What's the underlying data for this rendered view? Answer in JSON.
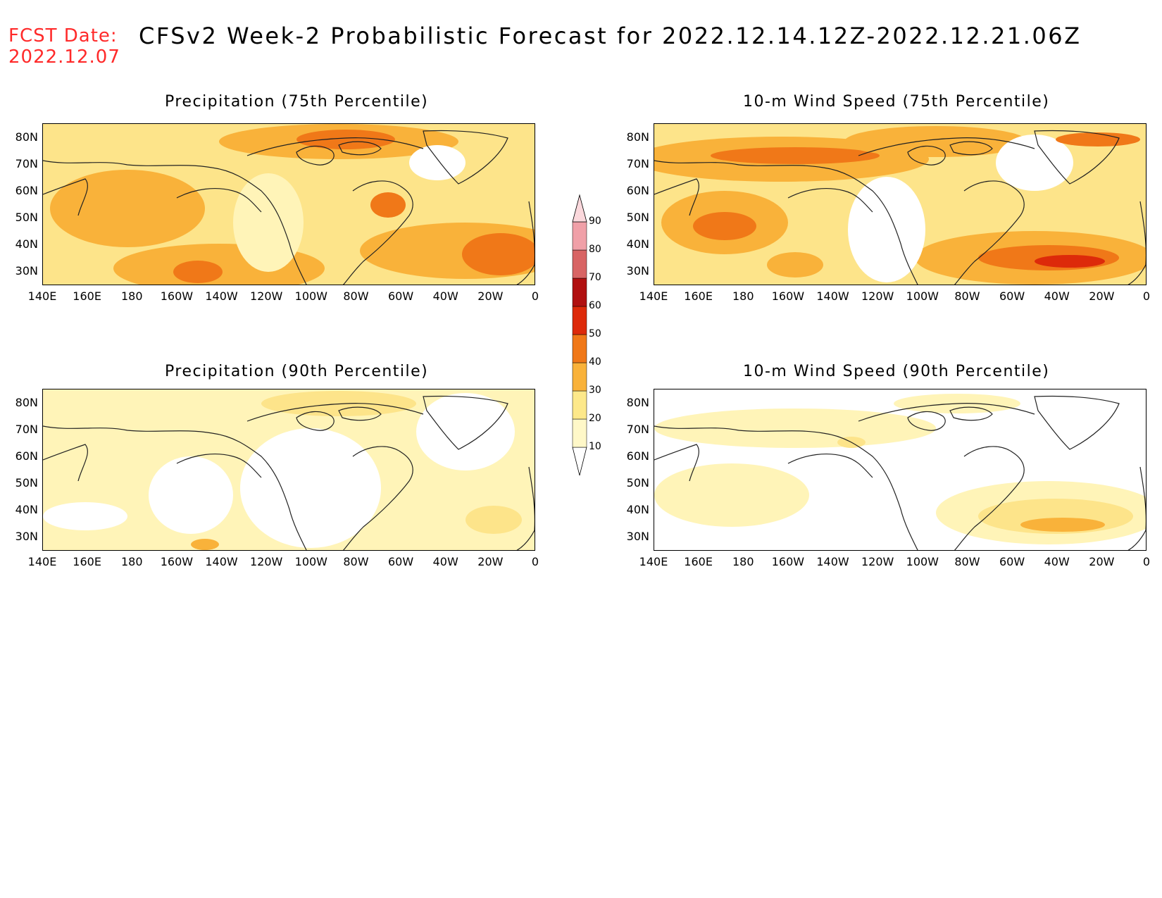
{
  "header": {
    "fcst_label": "FCST Date:",
    "fcst_date": "2022.12.07",
    "title": "CFSv2 Week-2 Probabilistic Forecast for 2022.12.14.12Z-2022.12.21.06Z"
  },
  "axes": {
    "lat_labels": [
      "80N",
      "70N",
      "60N",
      "50N",
      "40N",
      "30N"
    ],
    "lon_labels": [
      "140E",
      "160E",
      "180",
      "160W",
      "140W",
      "120W",
      "100W",
      "80W",
      "60W",
      "40W",
      "20W",
      "0"
    ]
  },
  "panels": [
    {
      "title": "Precipitation (75th Percentile)"
    },
    {
      "title": "10-m Wind Speed (75th Percentile)"
    },
    {
      "title": "Precipitation (90th Percentile)"
    },
    {
      "title": "10-m Wind Speed (90th Percentile)"
    }
  ],
  "colorbar": {
    "levels": [
      "10",
      "20",
      "30",
      "40",
      "50",
      "60",
      "70",
      "80",
      "90"
    ],
    "colors": [
      "#fff8c8",
      "#fde88a",
      "#f9b23a",
      "#f07818",
      "#dd2a0a",
      "#b01010",
      "#d86464",
      "#f0a0a8",
      "#fbd8dc"
    ]
  },
  "colors": {
    "p10": "#fff4b8",
    "p20": "#fde48a",
    "p30": "#f9b23a",
    "p40": "#f07818",
    "p50": "#dd2a0a",
    "coast": "#222222"
  }
}
